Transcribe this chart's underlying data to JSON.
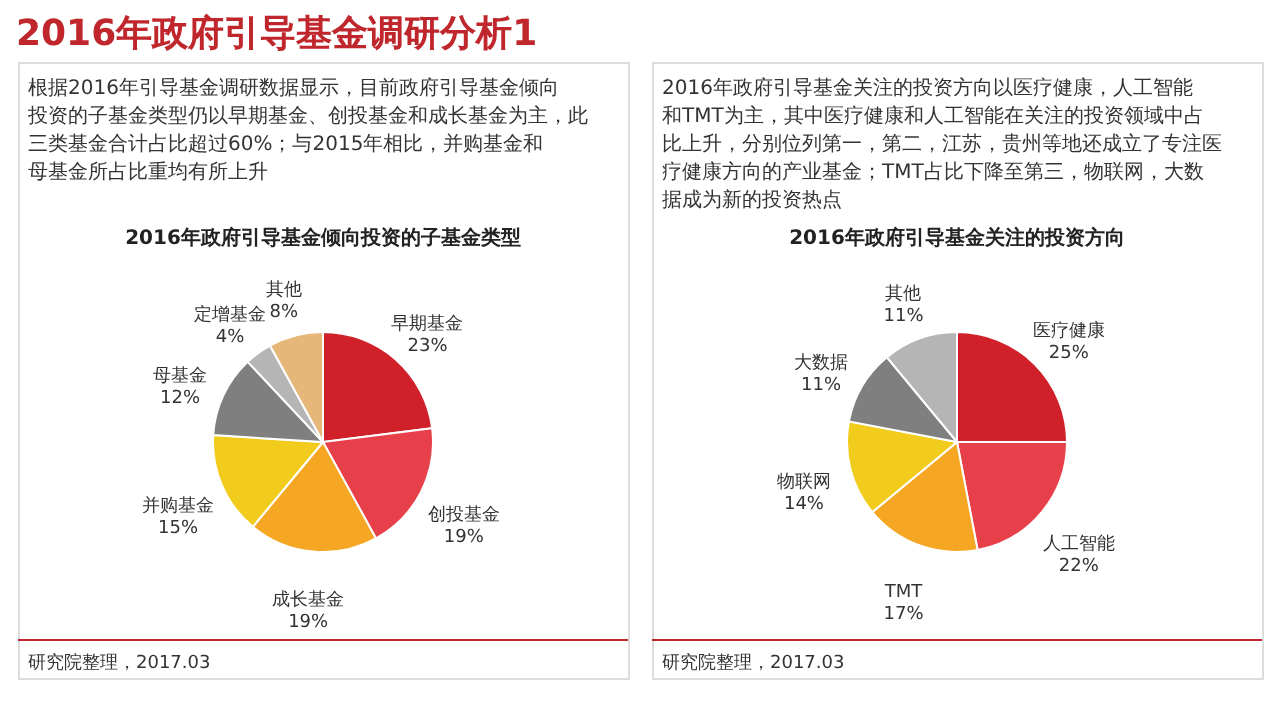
{
  "chart_data": [
    {
      "type": "pie",
      "title": "2016年政府引导基金倾向投资的子基金类型",
      "categories": [
        "早期基金",
        "创投基金",
        "成长基金",
        "并购基金",
        "母基金",
        "定增基金",
        "其他"
      ],
      "values": [
        23,
        19,
        19,
        15,
        12,
        4,
        8
      ],
      "colors": [
        "#d0202a",
        "#e8404a",
        "#f5a623",
        "#f2cc1c",
        "#7f7f7f",
        "#b5b5b5",
        "#e6b779"
      ],
      "value_labels": [
        "23%",
        "19%",
        "19%",
        "15%",
        "12%",
        "4%",
        "8%"
      ],
      "annotations": [
        "2016年政府引导基金调研分析1",
        "根据2016年引导基金调研数据显示，目前政府引导基金倾向投资的子基金类型仍以早期基金、创投基金和成长基金为主，此三类基金合计占比超过60%；与2015年相比，并购基金和母基金所占比重均有所上升",
        "研究院整理，2017.03"
      ]
    },
    {
      "type": "pie",
      "title": "2016年政府引导基金关注的投资方向",
      "categories": [
        "医疗健康",
        "人工智能",
        "TMT",
        "物联网",
        "大数据",
        "其他"
      ],
      "values": [
        25,
        22,
        17,
        14,
        11,
        11
      ],
      "colors": [
        "#d0202a",
        "#e8404a",
        "#f5a623",
        "#f2cc1c",
        "#7f7f7f",
        "#b5b5b5"
      ],
      "value_labels": [
        "25%",
        "22%",
        "17%",
        "14%",
        "11%",
        "11%"
      ],
      "annotations": [
        "2016年政府引导基金关注的投资方向以医疗健康，人工智能和TMT为主，其中医疗健康和人工智能在关注的投资领域中占比上升，分别位列第一，第二，江苏，贵州等地还成立了专注医疗健康方向的产业基金；TMT占比下降至第三，物联网，大数据成为新的投资热点",
        "研究院整理，2017.03"
      ]
    }
  ]
}
